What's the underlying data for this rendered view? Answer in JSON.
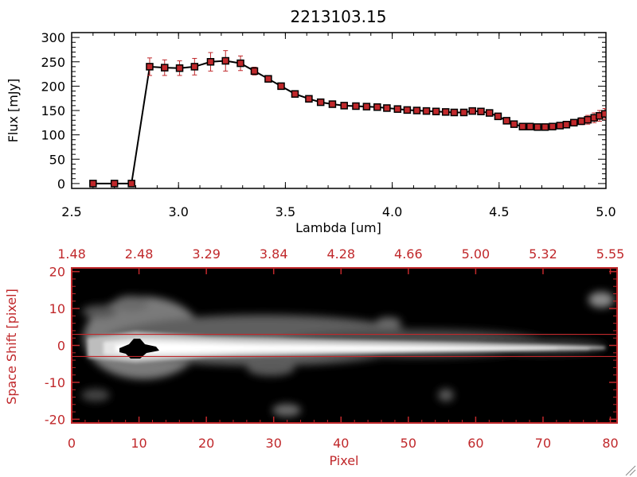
{
  "chart_data": [
    {
      "type": "line",
      "title": "2213103.15",
      "xlabel": "Lambda [um]",
      "ylabel": "Flux [mJy]",
      "xlim": [
        2.5,
        5.0
      ],
      "ylim": [
        -10,
        310
      ],
      "x_ticks": [
        "2.5",
        "3.0",
        "3.5",
        "4.0",
        "4.5",
        "5.0"
      ],
      "y_ticks": [
        "0",
        "50",
        "100",
        "150",
        "200",
        "250",
        "300"
      ],
      "colors": {
        "line": "#000000",
        "marker": "#c0282b",
        "error": "#c0282b"
      },
      "series": [
        {
          "x": [
            2.6,
            2.7,
            2.78,
            2.865,
            2.935,
            3.005,
            3.075,
            3.15,
            3.22,
            3.29,
            3.355,
            3.42,
            3.48,
            3.545,
            3.61,
            3.665,
            3.72,
            3.775,
            3.83,
            3.88,
            3.93,
            3.975,
            4.025,
            4.07,
            4.115,
            4.16,
            4.205,
            4.25,
            4.29,
            4.335,
            4.375,
            4.415,
            4.455,
            4.495,
            4.535,
            4.57,
            4.61,
            4.645,
            4.68,
            4.715,
            4.75,
            4.785,
            4.815,
            4.85,
            4.885,
            4.915,
            4.945,
            4.97,
            4.995
          ],
          "y": [
            0,
            0,
            0,
            240,
            238,
            237,
            240,
            250,
            252,
            247,
            231,
            215,
            200,
            184,
            174,
            167,
            163,
            160,
            159,
            158,
            157,
            155,
            153,
            151,
            150,
            149,
            148,
            147,
            146,
            146,
            149,
            148,
            145,
            138,
            129,
            122,
            117,
            117,
            116,
            116,
            117,
            119,
            121,
            125,
            128,
            131,
            135,
            139,
            143
          ],
          "yerr": [
            0,
            0,
            0,
            18,
            16,
            15,
            17,
            19,
            21,
            15,
            8,
            5,
            4,
            3,
            3,
            3,
            2,
            2,
            2,
            2,
            2,
            2,
            2,
            2,
            2,
            2,
            2,
            2,
            2,
            2,
            3,
            3,
            3,
            3,
            3,
            3,
            3,
            3,
            3,
            3,
            3,
            4,
            5,
            6,
            7,
            9,
            10,
            11,
            11
          ]
        }
      ]
    },
    {
      "type": "heatmap",
      "xlabel": "Pixel",
      "ylabel": "Space Shift [pixel]",
      "xlim": [
        0,
        81
      ],
      "ylim": [
        -21,
        21
      ],
      "x_ticks": [
        "0",
        "10",
        "20",
        "30",
        "40",
        "50",
        "60",
        "70",
        "80"
      ],
      "y_ticks": [
        "-20",
        "-10",
        "0",
        "10",
        "20"
      ],
      "top_ticks": [
        "1.48",
        "2.48",
        "3.29",
        "3.84",
        "4.28",
        "4.66",
        "5.00",
        "5.32",
        "5.55"
      ],
      "extraction_band": [
        -3,
        3
      ],
      "colors": {
        "axes": "#c0282b",
        "band": "#c0282b",
        "background": "#000000"
      }
    }
  ]
}
